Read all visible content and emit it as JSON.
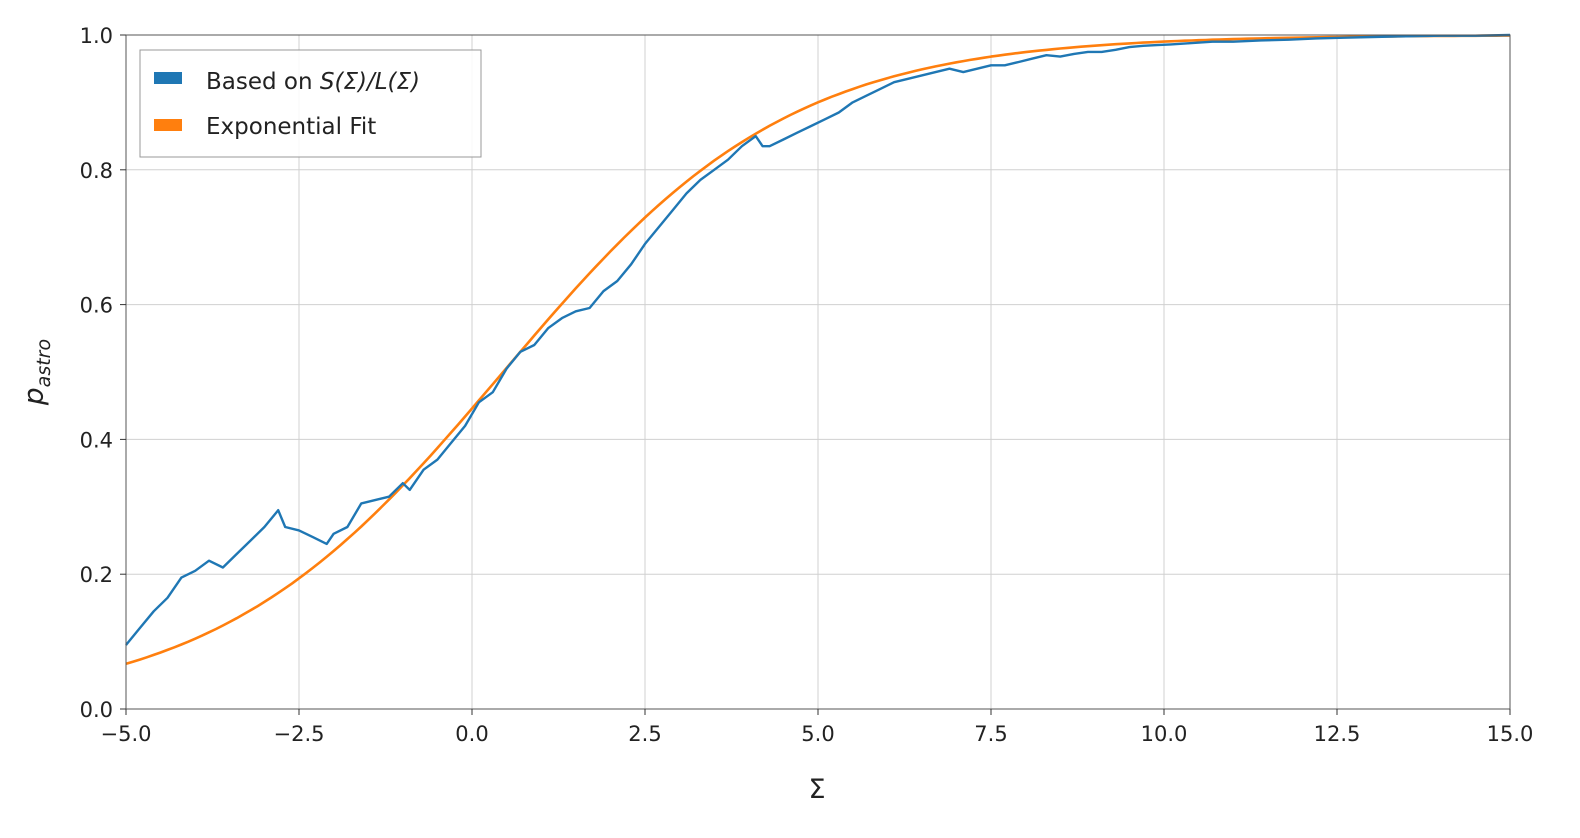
{
  "chart_data": {
    "type": "line",
    "xlabel": "Σ",
    "ylabel": {
      "main": "p",
      "subscript": "astro"
    },
    "xlim": [
      -5.0,
      15.0
    ],
    "ylim": [
      0.0,
      1.0
    ],
    "x_ticks": [
      -5.0,
      -2.5,
      0.0,
      2.5,
      5.0,
      7.5,
      10.0,
      12.5,
      15.0
    ],
    "x_tick_labels": [
      "−5.0",
      "−2.5",
      "0.0",
      "2.5",
      "5.0",
      "7.5",
      "10.0",
      "12.5",
      "15.0"
    ],
    "y_ticks": [
      0.0,
      0.2,
      0.4,
      0.6,
      0.8,
      1.0
    ],
    "y_tick_labels": [
      "0.0",
      "0.2",
      "0.4",
      "0.6",
      "0.8",
      "1.0"
    ],
    "grid": true,
    "legend_position": "top-left",
    "series": [
      {
        "name": "Based on S(Σ)/L(Σ)",
        "legend_parts": {
          "prefix": "Based on ",
          "formula": "S(Σ)/L(Σ)"
        },
        "color": "#1f77b4",
        "x": [
          -5.0,
          -4.8,
          -4.6,
          -4.4,
          -4.2,
          -4.0,
          -3.8,
          -3.6,
          -3.4,
          -3.2,
          -3.0,
          -2.8,
          -2.7,
          -2.5,
          -2.3,
          -2.1,
          -2.0,
          -1.8,
          -1.6,
          -1.4,
          -1.2,
          -1.0,
          -0.9,
          -0.7,
          -0.5,
          -0.3,
          -0.1,
          0.1,
          0.3,
          0.5,
          0.7,
          0.9,
          1.1,
          1.3,
          1.5,
          1.7,
          1.9,
          2.1,
          2.3,
          2.5,
          2.7,
          2.9,
          3.1,
          3.3,
          3.5,
          3.7,
          3.9,
          4.1,
          4.2,
          4.3,
          4.5,
          4.7,
          4.9,
          5.1,
          5.3,
          5.5,
          5.7,
          5.9,
          6.1,
          6.3,
          6.5,
          6.7,
          6.9,
          7.1,
          7.3,
          7.5,
          7.7,
          7.9,
          8.1,
          8.3,
          8.5,
          8.7,
          8.9,
          9.1,
          9.3,
          9.5,
          9.7,
          9.9,
          10.1,
          10.4,
          10.7,
          11.0,
          11.4,
          11.8,
          12.2,
          12.6,
          13.0,
          13.5,
          14.0,
          14.5,
          15.0
        ],
        "y": [
          0.095,
          0.12,
          0.145,
          0.165,
          0.195,
          0.205,
          0.22,
          0.21,
          0.23,
          0.25,
          0.27,
          0.295,
          0.27,
          0.265,
          0.255,
          0.245,
          0.26,
          0.27,
          0.305,
          0.31,
          0.315,
          0.335,
          0.325,
          0.355,
          0.37,
          0.395,
          0.42,
          0.455,
          0.47,
          0.505,
          0.53,
          0.54,
          0.565,
          0.58,
          0.59,
          0.595,
          0.62,
          0.635,
          0.66,
          0.69,
          0.715,
          0.74,
          0.765,
          0.785,
          0.8,
          0.815,
          0.835,
          0.85,
          0.835,
          0.835,
          0.845,
          0.855,
          0.865,
          0.875,
          0.885,
          0.9,
          0.91,
          0.92,
          0.93,
          0.935,
          0.94,
          0.945,
          0.95,
          0.945,
          0.95,
          0.955,
          0.955,
          0.96,
          0.965,
          0.97,
          0.968,
          0.972,
          0.975,
          0.975,
          0.978,
          0.982,
          0.984,
          0.985,
          0.986,
          0.988,
          0.99,
          0.99,
          0.992,
          0.993,
          0.995,
          0.996,
          0.997,
          0.998,
          0.999,
          0.999,
          1.0
        ]
      },
      {
        "name": "Exponential Fit",
        "color": "#ff7f0e",
        "function": {
          "form": "1/(1+exp(-(x-x0)/k))",
          "x0": 0.45,
          "k": 2.07,
          "step": 0.1
        }
      }
    ]
  }
}
